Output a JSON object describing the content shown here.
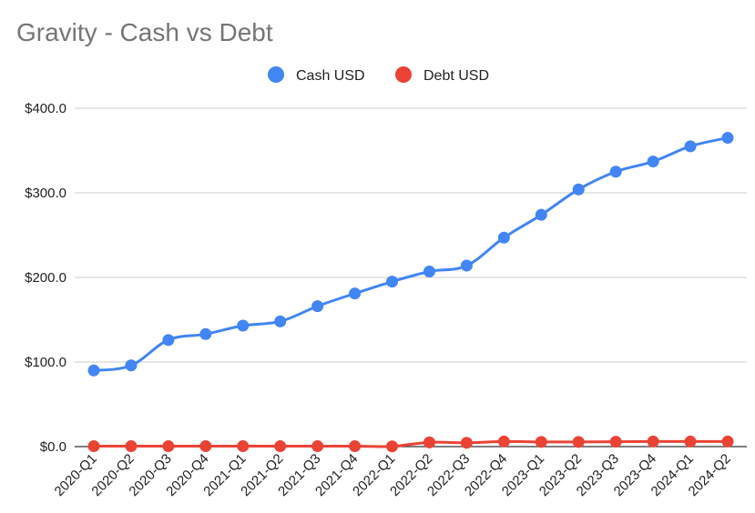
{
  "chart_data": {
    "type": "line",
    "title": "Gravity - Cash vs Debt",
    "xlabel": "",
    "ylabel": "",
    "categories": [
      "2020-Q1",
      "2020-Q2",
      "2020-Q3",
      "2020-Q4",
      "2021-Q1",
      "2021-Q2",
      "2021-Q3",
      "2021-Q4",
      "2022-Q1",
      "2022-Q2",
      "2022-Q3",
      "2022-Q4",
      "2023-Q1",
      "2023-Q2",
      "2023-Q3",
      "2023-Q4",
      "2024-Q1",
      "2024-Q2"
    ],
    "series": [
      {
        "name": "Cash USD",
        "color": "#4285f4",
        "values": [
          90,
          96,
          126,
          133,
          143,
          148,
          166,
          181,
          195,
          207,
          214,
          247,
          274,
          304,
          325,
          337,
          355,
          365
        ]
      },
      {
        "name": "Debt USD",
        "color": "#ea4335",
        "values": [
          0.5,
          0.5,
          0.5,
          0.5,
          0.5,
          0.5,
          0.5,
          0.5,
          0.3,
          5,
          4.5,
          6,
          5.5,
          5.5,
          5.8,
          6,
          6,
          6
        ]
      }
    ],
    "ylim": [
      0,
      400
    ],
    "yticks": [
      0,
      100,
      200,
      300,
      400
    ],
    "ytick_labels": [
      "$0.0",
      "$100.0",
      "$200.0",
      "$300.0",
      "$400.0"
    ],
    "grid": true,
    "legend_position": "top-center"
  }
}
